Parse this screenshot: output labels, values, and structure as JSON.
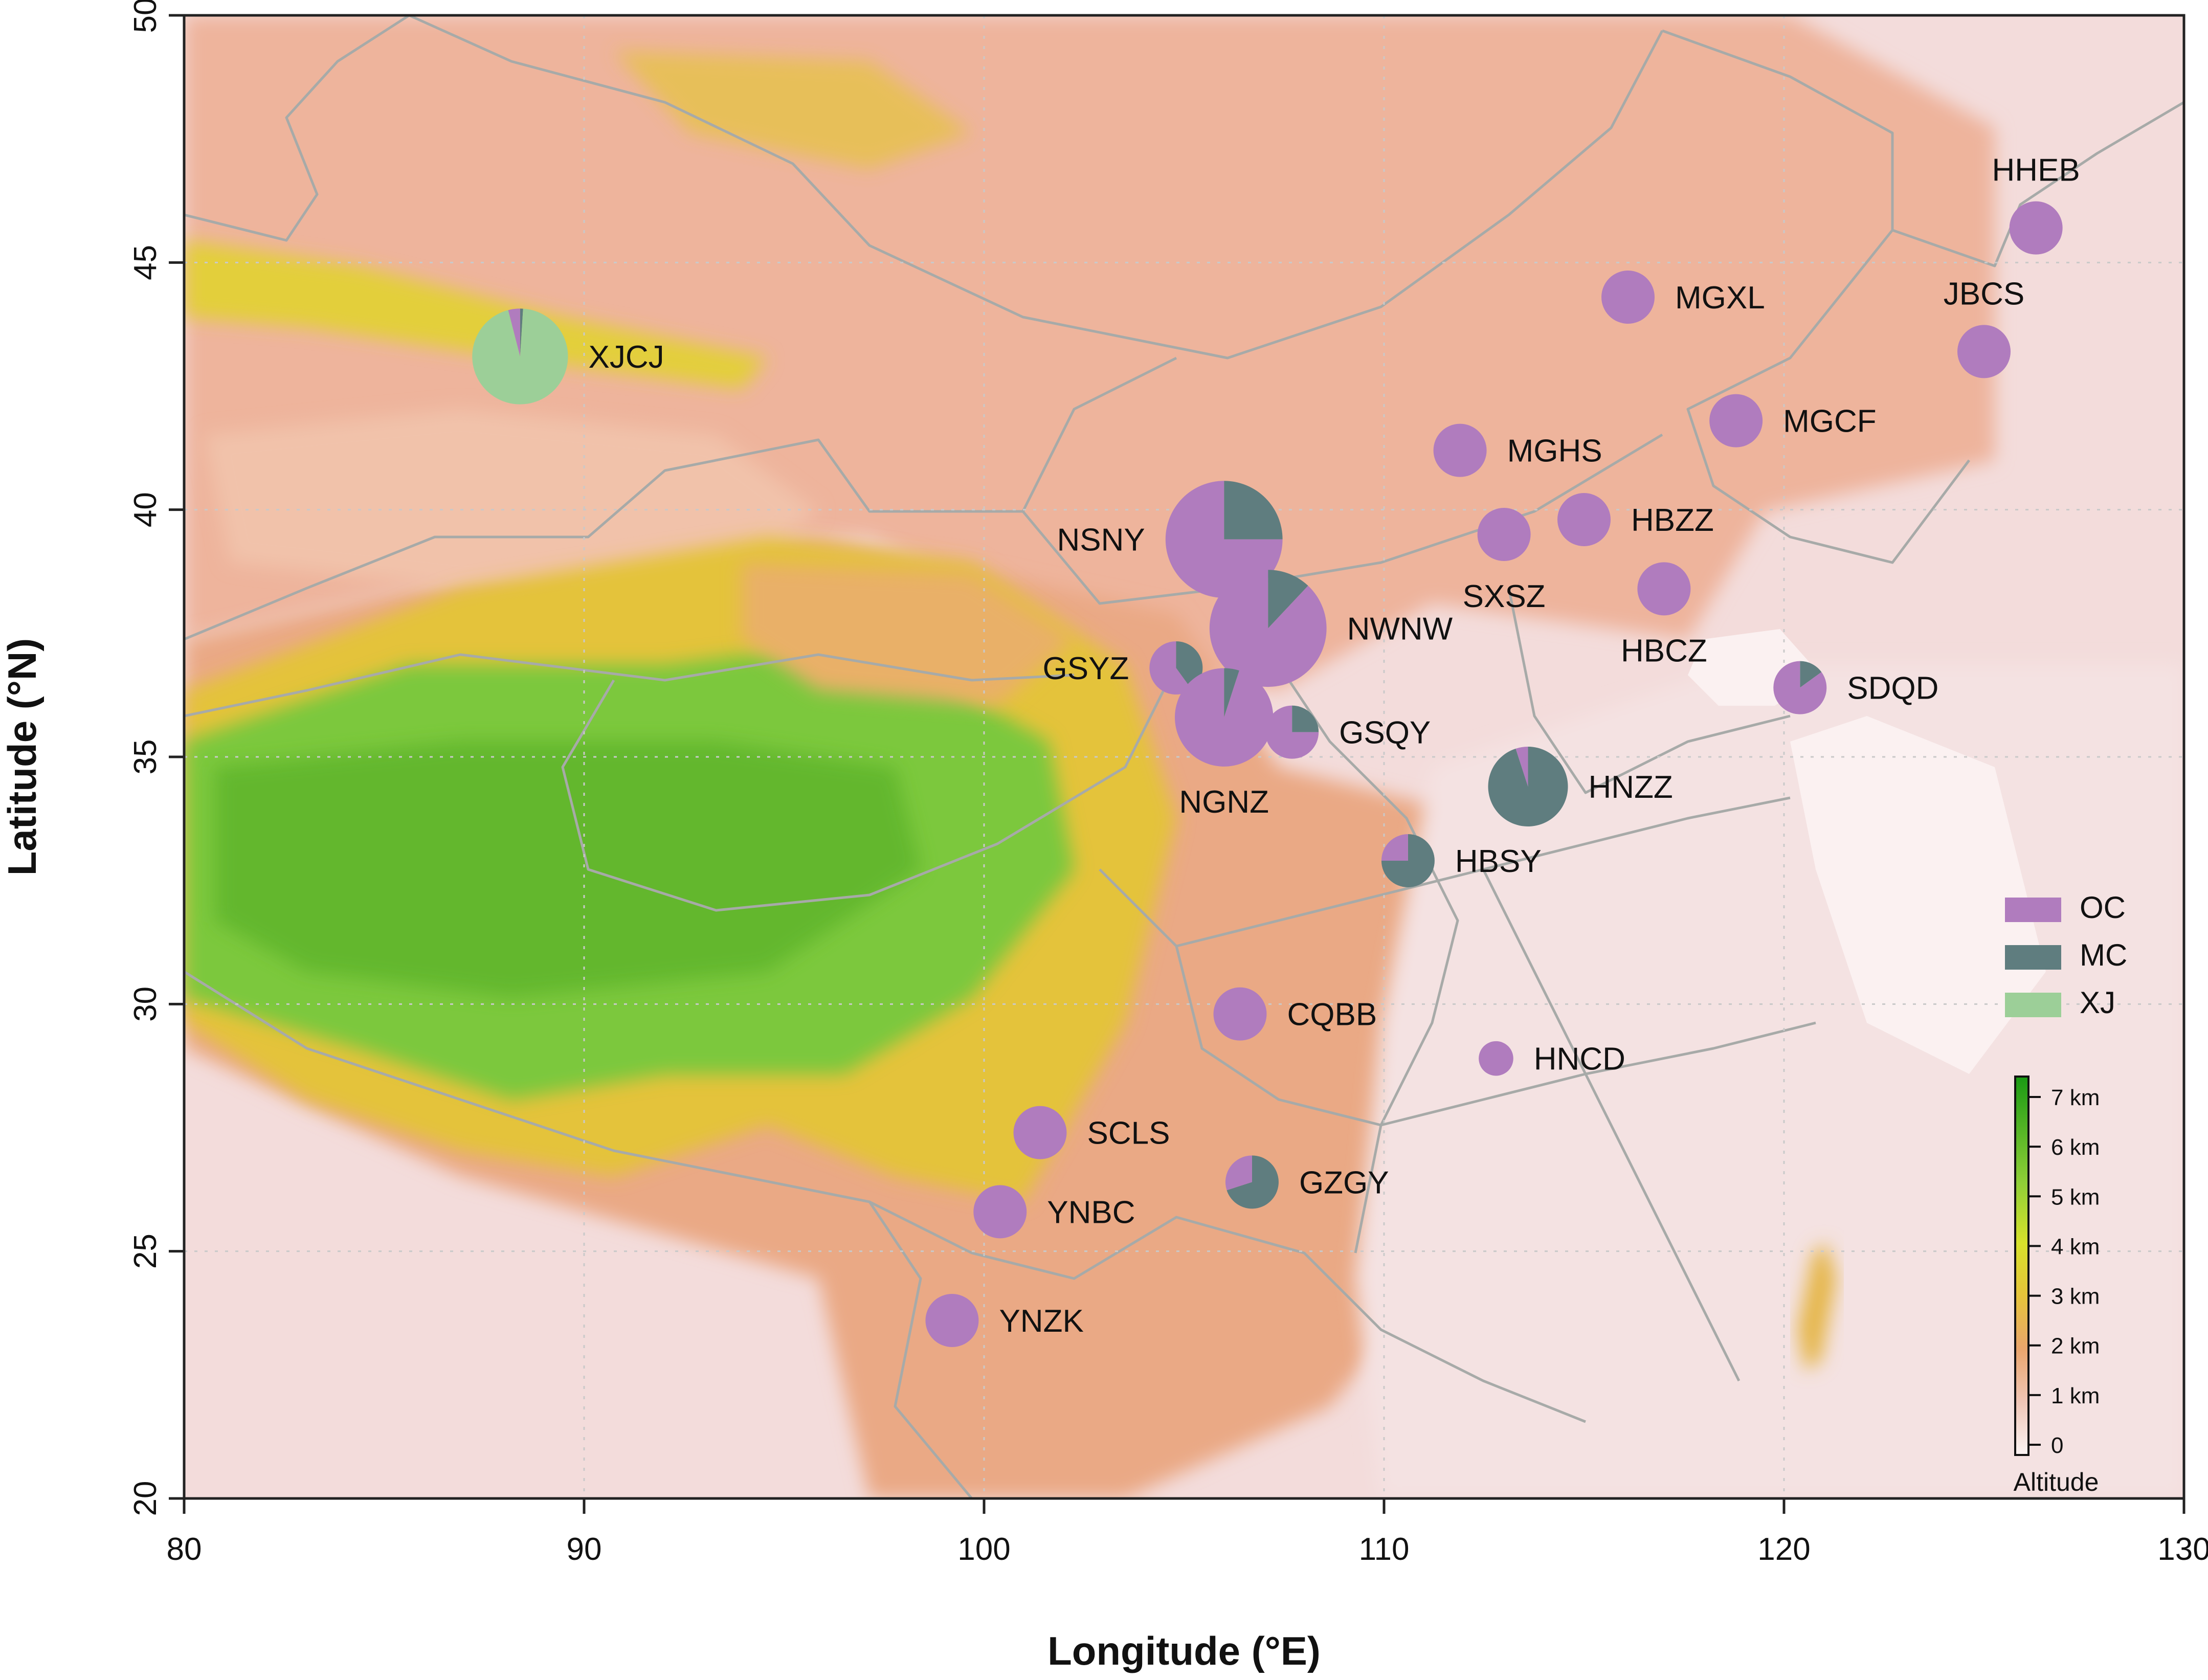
{
  "map": {
    "xlabel": "Longitude (°E)",
    "ylabel": "Latitude (°N)",
    "xlim": [
      80,
      130
    ],
    "ylim": [
      20,
      50
    ],
    "x_ticks": [
      "80",
      "90",
      "100",
      "110",
      "120",
      "130"
    ],
    "y_ticks": [
      "20",
      "25",
      "30",
      "35",
      "40",
      "45",
      "50"
    ],
    "grid": true,
    "colors": {
      "OC": "#b07cbe",
      "MC": "#5f7d7f",
      "XJ": "#9ccf98",
      "lowland": "#f3dcdb",
      "midland": "#e9a882",
      "highland": "#e4c040",
      "plateau": "#79c83c",
      "border": "#a7aaa8"
    }
  },
  "legend": {
    "items": [
      {
        "label": "OC",
        "color": "#b07cbe"
      },
      {
        "label": "MC",
        "color": "#5f7d7f"
      },
      {
        "label": "XJ",
        "color": "#9ccf98"
      }
    ]
  },
  "altitude_scale": {
    "title": "Altitude",
    "labels": [
      "0",
      "1 km",
      "2 km",
      "3 km",
      "4 km",
      "5 km",
      "6 km",
      "7 km"
    ]
  },
  "chart_data": {
    "type": "map-pie",
    "sites": [
      {
        "name": "HHEB",
        "lon": 126.3,
        "lat": 45.7,
        "size": 1.0,
        "OC": 1.0,
        "MC": 0.0,
        "XJ": 0.0,
        "label_side": "top"
      },
      {
        "name": "MGXL",
        "lon": 116.1,
        "lat": 44.3,
        "size": 1.0,
        "OC": 1.0,
        "MC": 0.0,
        "XJ": 0.0,
        "label_side": "right"
      },
      {
        "name": "JBCS",
        "lon": 125.0,
        "lat": 43.2,
        "size": 1.0,
        "OC": 1.0,
        "MC": 0.0,
        "XJ": 0.0,
        "label_side": "top"
      },
      {
        "name": "XJCJ",
        "lon": 88.4,
        "lat": 43.1,
        "size": 1.8,
        "OC": 0.04,
        "MC": 0.01,
        "XJ": 0.95,
        "label_side": "right"
      },
      {
        "name": "MGCF",
        "lon": 118.8,
        "lat": 41.8,
        "size": 1.0,
        "OC": 1.0,
        "MC": 0.0,
        "XJ": 0.0,
        "label_side": "right"
      },
      {
        "name": "MGHS",
        "lon": 111.9,
        "lat": 41.2,
        "size": 1.0,
        "OC": 1.0,
        "MC": 0.0,
        "XJ": 0.0,
        "label_side": "right"
      },
      {
        "name": "HBZZ",
        "lon": 115.0,
        "lat": 39.8,
        "size": 1.0,
        "OC": 1.0,
        "MC": 0.0,
        "XJ": 0.0,
        "label_side": "right"
      },
      {
        "name": "SXSZ",
        "lon": 113.0,
        "lat": 39.5,
        "size": 1.0,
        "OC": 1.0,
        "MC": 0.0,
        "XJ": 0.0,
        "label_side": "bottom"
      },
      {
        "name": "NSNY",
        "lon": 106.0,
        "lat": 39.4,
        "size": 2.2,
        "OC": 0.75,
        "MC": 0.25,
        "XJ": 0.0,
        "label_side": "left"
      },
      {
        "name": "HBCZ",
        "lon": 117.0,
        "lat": 38.4,
        "size": 1.0,
        "OC": 1.0,
        "MC": 0.0,
        "XJ": 0.0,
        "label_side": "bottom"
      },
      {
        "name": "NWNW",
        "lon": 107.1,
        "lat": 37.6,
        "size": 2.2,
        "OC": 0.88,
        "MC": 0.12,
        "XJ": 0.0,
        "label_side": "right"
      },
      {
        "name": "GSYZ",
        "lon": 104.8,
        "lat": 36.8,
        "size": 1.0,
        "OC": 0.6,
        "MC": 0.4,
        "XJ": 0.0,
        "label_side": "left"
      },
      {
        "name": "SDQD",
        "lon": 120.4,
        "lat": 36.4,
        "size": 1.0,
        "OC": 0.85,
        "MC": 0.15,
        "XJ": 0.0,
        "label_side": "right"
      },
      {
        "name": "NGNZ",
        "lon": 106.0,
        "lat": 35.8,
        "size": 1.85,
        "OC": 0.95,
        "MC": 0.05,
        "XJ": 0.0,
        "label_side": "bottom"
      },
      {
        "name": "GSQY",
        "lon": 107.7,
        "lat": 35.5,
        "size": 1.0,
        "OC": 0.75,
        "MC": 0.25,
        "XJ": 0.0,
        "label_side": "right"
      },
      {
        "name": "HNZZ",
        "lon": 113.6,
        "lat": 34.4,
        "size": 1.5,
        "OC": 0.05,
        "MC": 0.95,
        "XJ": 0.0,
        "label_side": "right"
      },
      {
        "name": "HBSY",
        "lon": 110.6,
        "lat": 32.9,
        "size": 1.0,
        "OC": 0.25,
        "MC": 0.75,
        "XJ": 0.0,
        "label_side": "right"
      },
      {
        "name": "CQBB",
        "lon": 106.4,
        "lat": 29.8,
        "size": 1.0,
        "OC": 1.0,
        "MC": 0.0,
        "XJ": 0.0,
        "label_side": "right"
      },
      {
        "name": "HNCD",
        "lon": 112.8,
        "lat": 28.9,
        "size": 0.65,
        "OC": 1.0,
        "MC": 0.0,
        "XJ": 0.0,
        "label_side": "right"
      },
      {
        "name": "SCLS",
        "lon": 101.4,
        "lat": 27.4,
        "size": 1.0,
        "OC": 1.0,
        "MC": 0.0,
        "XJ": 0.0,
        "label_side": "right"
      },
      {
        "name": "GZGY",
        "lon": 106.7,
        "lat": 26.4,
        "size": 1.0,
        "OC": 0.3,
        "MC": 0.7,
        "XJ": 0.0,
        "label_side": "right"
      },
      {
        "name": "YNBC",
        "lon": 100.4,
        "lat": 25.8,
        "size": 1.0,
        "OC": 1.0,
        "MC": 0.0,
        "XJ": 0.0,
        "label_side": "right"
      },
      {
        "name": "YNZK",
        "lon": 99.2,
        "lat": 23.6,
        "size": 1.0,
        "OC": 1.0,
        "MC": 0.0,
        "XJ": 0.0,
        "label_side": "right"
      }
    ]
  }
}
